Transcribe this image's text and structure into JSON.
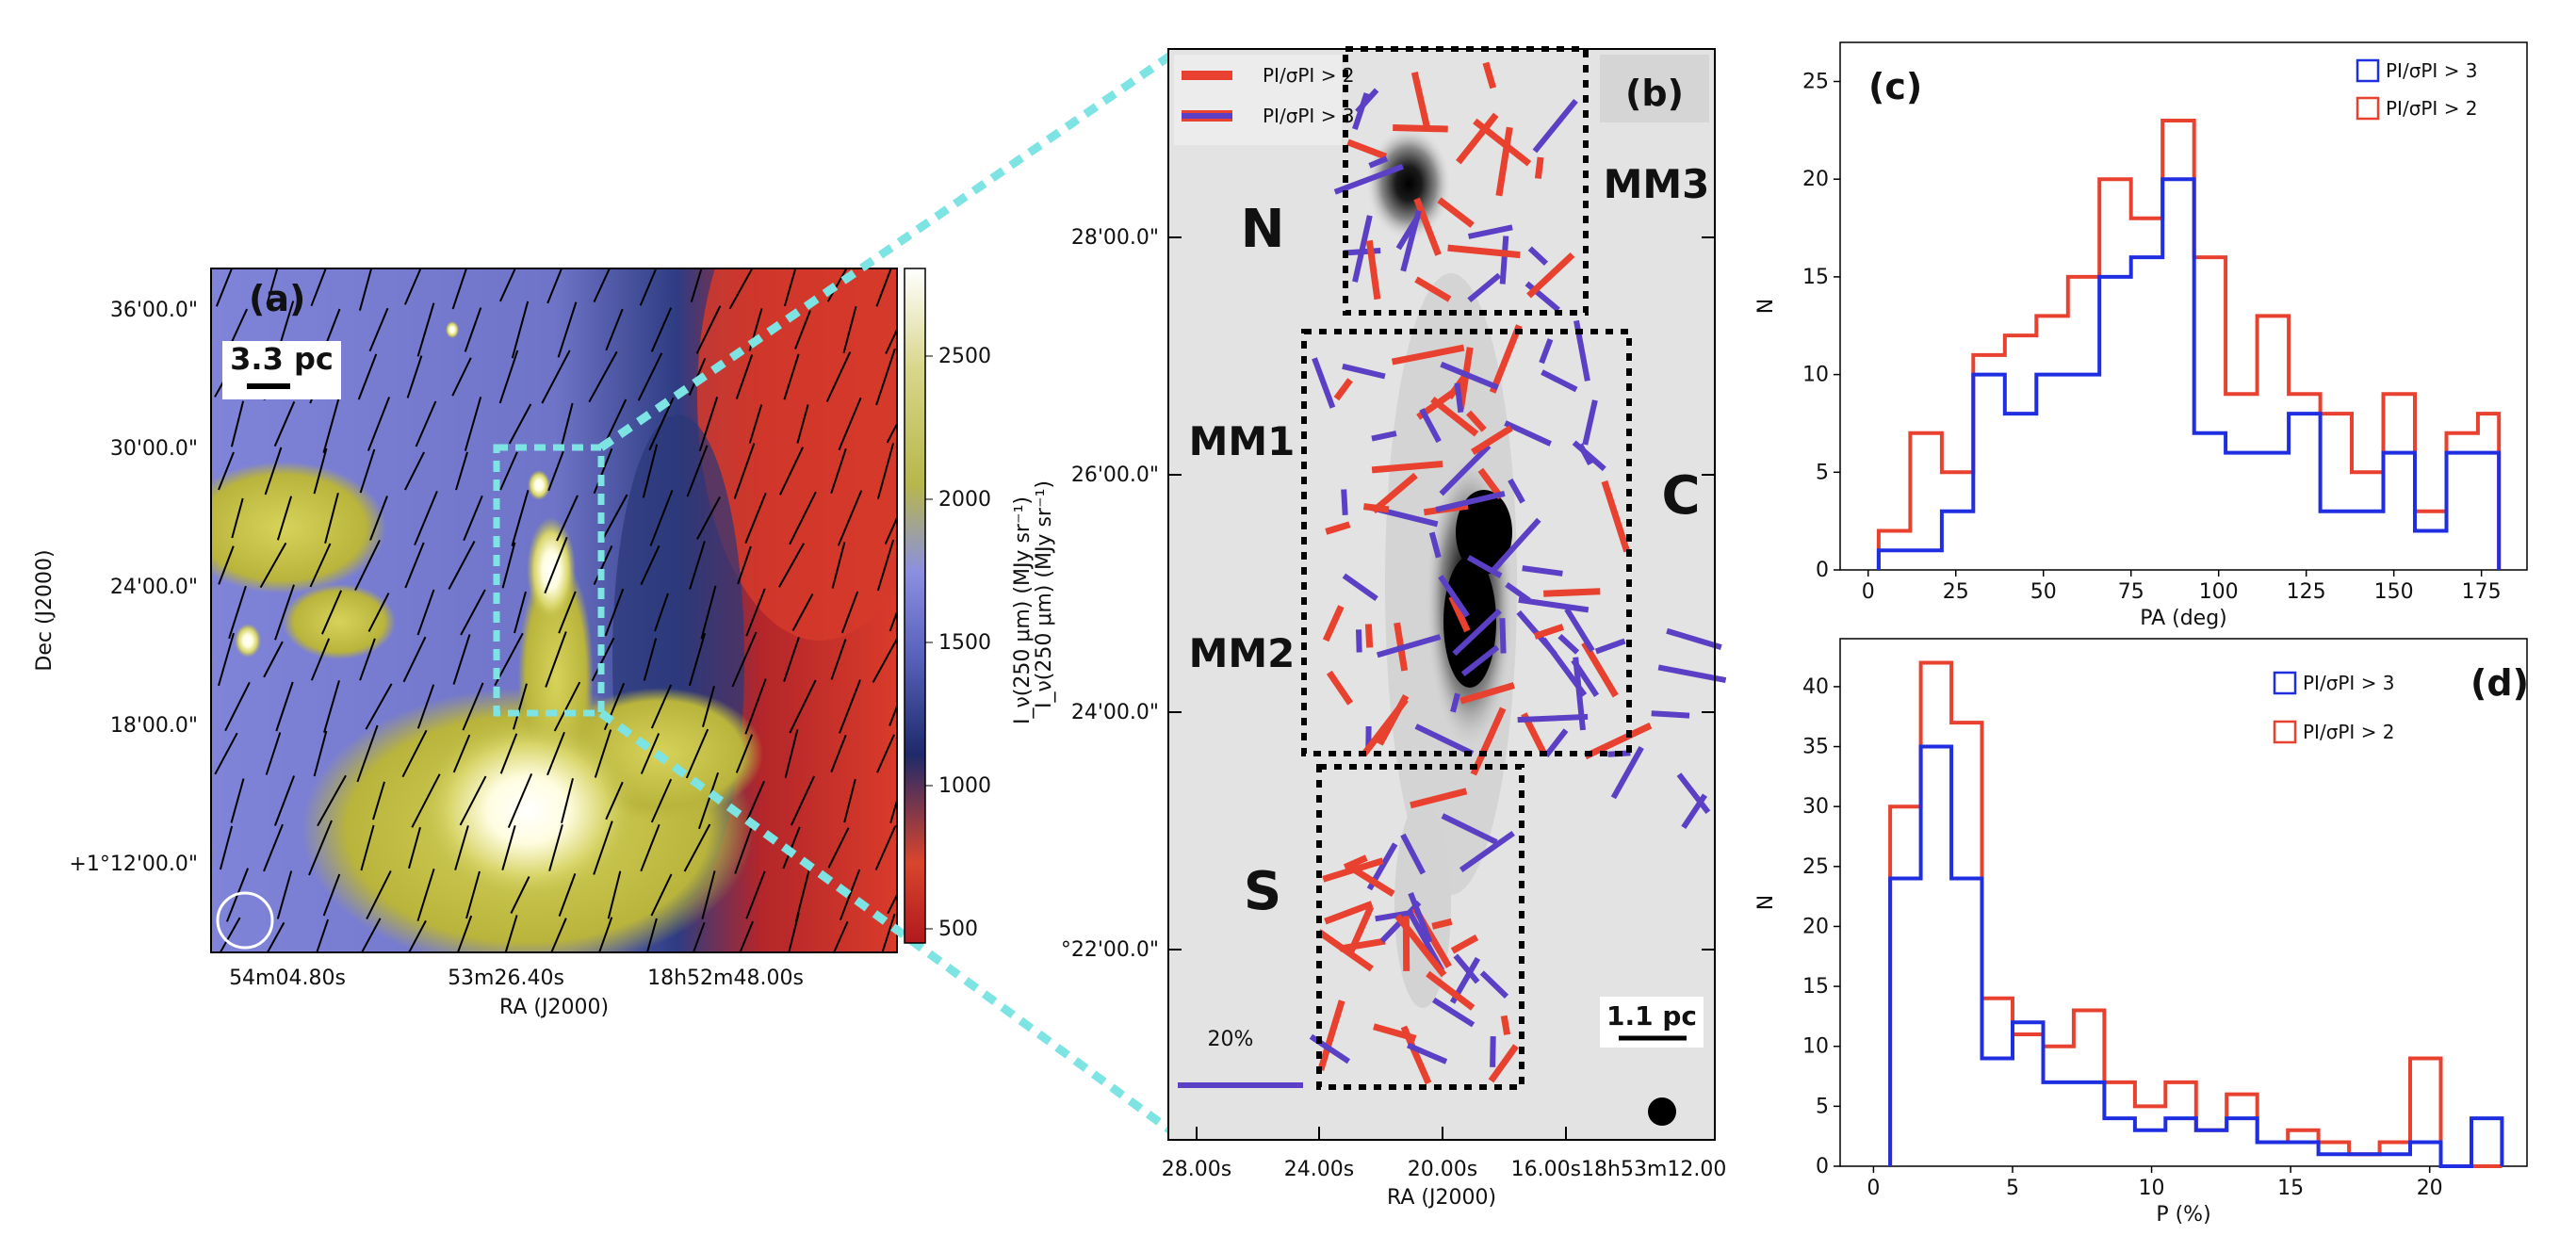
{
  "panel_a": {
    "label": "(a)",
    "scale_bar": "3.3 pc",
    "colorbar_label": "I_ν(250 μm) (MJy sr⁻¹)",
    "colorbar_ticks": [
      "2500",
      "2000",
      "1500",
      "1000",
      "500"
    ],
    "dec_ticks": [
      "36'00.0\"",
      "30'00.0\"",
      "24'00.0\"",
      "18'00.0\"",
      "+1°12'00.0\""
    ],
    "ra_ticks": [
      "54m04.80s",
      "53m26.40s",
      "18h52m48.00s"
    ],
    "xlabel": "RA (J2000)",
    "ylabel": "Dec (J2000)",
    "colors": {
      "low": "#d12a1e",
      "mid_dark": "#2c3a7c",
      "mid": "#7d82d6",
      "high": "#c2c23e",
      "peak": "#ffffff"
    }
  },
  "panel_b": {
    "label": "(b)",
    "legend": [
      "PI/σPI > 2",
      "PI/σPI > 3"
    ],
    "regions": [
      "N",
      "C",
      "S"
    ],
    "cores": [
      "MM1",
      "MM2",
      "MM3"
    ],
    "scale_bar": "1.1 pc",
    "vector_scale": "20%",
    "dec_ticks": [
      "28'00.0\"",
      "26'00.0\"",
      "24'00.0\"",
      "°22'00.0\""
    ],
    "ra_ticks": [
      "28.00s",
      "24.00s",
      "20.00s",
      "16.00s18h53m12.00"
    ],
    "xlabel": "RA (J2000)",
    "colors": {
      "red": "#e8412f",
      "blue": "#5b3fc4"
    }
  },
  "chart_data": [
    {
      "id": "c",
      "type": "histogram",
      "title": "(c)",
      "xlabel": "PA (deg)",
      "ylabel": "N",
      "xlim": [
        -8,
        188
      ],
      "ylim": [
        0,
        27
      ],
      "xticks": [
        0,
        25,
        50,
        75,
        100,
        125,
        150,
        175
      ],
      "yticks": [
        0,
        5,
        10,
        15,
        20,
        25
      ],
      "legend_loc": "top-right",
      "series": [
        {
          "name": "PI/σPI > 3",
          "color": "#1f2ee0",
          "edges": [
            3,
            12,
            21,
            30,
            39,
            48,
            57,
            66,
            75,
            84,
            93,
            102,
            111,
            120,
            129,
            138,
            147,
            156,
            165,
            174,
            180
          ],
          "counts": [
            1,
            1,
            3,
            10,
            8,
            10,
            10,
            15,
            16,
            20,
            7,
            6,
            6,
            8,
            3,
            3,
            6,
            2,
            6,
            6
          ]
        },
        {
          "name": "PI/σPI > 2",
          "color": "#e8412f",
          "edges": [
            3,
            12,
            21,
            30,
            39,
            48,
            57,
            66,
            75,
            84,
            93,
            102,
            111,
            120,
            129,
            138,
            147,
            156,
            165,
            174,
            180
          ],
          "counts": [
            2,
            7,
            5,
            11,
            12,
            13,
            15,
            20,
            18,
            23,
            16,
            9,
            13,
            9,
            8,
            5,
            9,
            3,
            7,
            8
          ]
        }
      ]
    },
    {
      "id": "d",
      "type": "histogram",
      "title": "(d)",
      "xlabel": "P (%)",
      "ylabel": "N",
      "xlim": [
        -1.2,
        23.5
      ],
      "ylim": [
        0,
        44
      ],
      "xticks": [
        0,
        5,
        10,
        15,
        20
      ],
      "yticks": [
        0,
        5,
        10,
        15,
        20,
        25,
        30,
        35,
        40
      ],
      "legend_loc": "top-right",
      "series": [
        {
          "name": "PI/σPI > 3",
          "color": "#1f2ee0",
          "edges": [
            0.6,
            1.7,
            2.8,
            3.9,
            5.0,
            6.1,
            7.2,
            8.3,
            9.4,
            10.5,
            11.6,
            12.7,
            13.8,
            14.9,
            16.0,
            17.1,
            18.2,
            19.3,
            20.4,
            21.5,
            22.6
          ],
          "counts": [
            24,
            35,
            24,
            9,
            12,
            7,
            7,
            4,
            3,
            4,
            3,
            4,
            2,
            2,
            1,
            1,
            1,
            2,
            0,
            4
          ]
        },
        {
          "name": "PI/σPI > 2",
          "color": "#e8412f",
          "edges": [
            0.6,
            1.7,
            2.8,
            3.9,
            5.0,
            6.1,
            7.2,
            8.3,
            9.4,
            10.5,
            11.6,
            12.7,
            13.8,
            14.9,
            16.0,
            17.1,
            18.2,
            19.3,
            20.4,
            21.5,
            22.6
          ],
          "counts": [
            30,
            42,
            37,
            14,
            11,
            10,
            13,
            7,
            5,
            7,
            3,
            6,
            2,
            3,
            2,
            1,
            2,
            9,
            0,
            0
          ]
        }
      ]
    }
  ]
}
